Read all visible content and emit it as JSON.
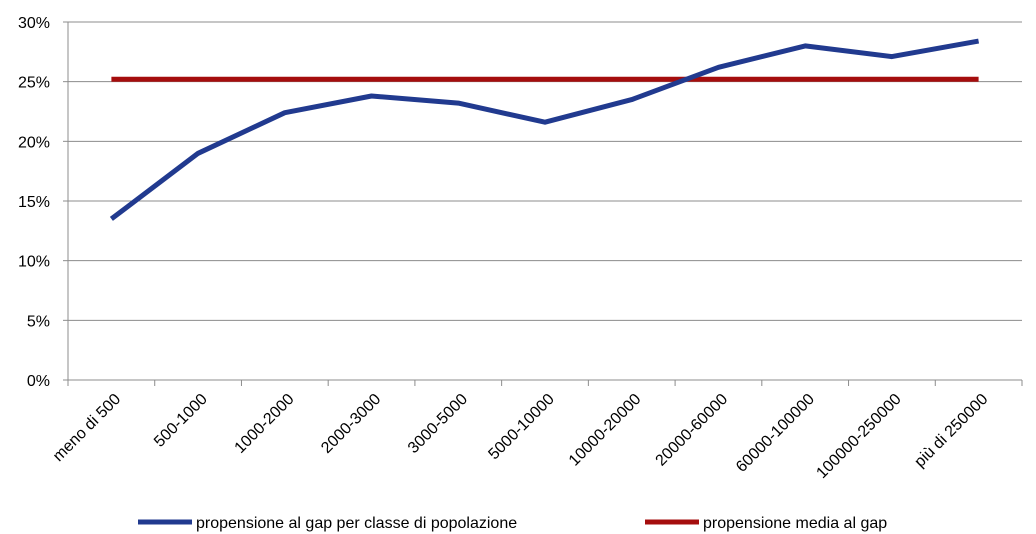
{
  "chart_data": {
    "type": "line",
    "title": "",
    "xlabel": "",
    "ylabel": "",
    "categories": [
      "meno di 500",
      "500-1000",
      "1000-2000",
      "2000-3000",
      "3000-5000",
      "5000-10000",
      "10000-20000",
      "20000-60000",
      "60000-100000",
      "100000-250000",
      "più di 250000"
    ],
    "ylim": [
      0,
      30
    ],
    "yticks": [
      "0%",
      "5%",
      "10%",
      "15%",
      "20%",
      "25%",
      "30%"
    ],
    "grid": true,
    "legend_position": "bottom",
    "series": [
      {
        "name": "propensione al gap per classe di popolazione",
        "color": "#213A8F",
        "values": [
          13.5,
          19.0,
          22.4,
          23.8,
          23.2,
          21.6,
          23.5,
          26.2,
          28.0,
          27.1,
          28.4
        ]
      },
      {
        "name": "propensione media al gap",
        "color": "#A50D0D",
        "values": [
          25.2,
          25.2,
          25.2,
          25.2,
          25.2,
          25.2,
          25.2,
          25.2,
          25.2,
          25.2,
          25.2
        ]
      }
    ]
  }
}
